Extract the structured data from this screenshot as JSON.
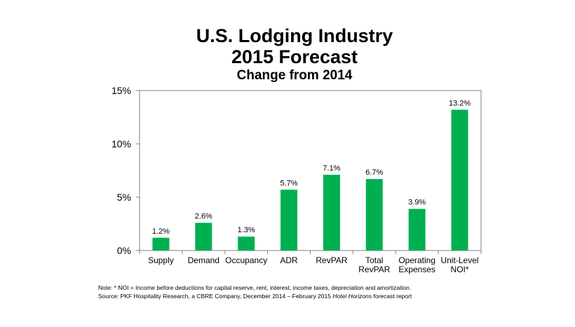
{
  "chart_data": {
    "type": "bar",
    "title_line1": "U.S. Lodging Industry",
    "title_line2": "2015 Forecast",
    "subtitle": "Change from 2014",
    "categories": [
      [
        "Supply"
      ],
      [
        "Demand"
      ],
      [
        "Occupancy"
      ],
      [
        "ADR"
      ],
      [
        "RevPAR"
      ],
      [
        "Total",
        "RevPAR"
      ],
      [
        "Operating",
        "Expenses"
      ],
      [
        "Unit-Level",
        "NOI*"
      ]
    ],
    "values": [
      1.2,
      2.6,
      1.3,
      5.7,
      7.1,
      6.7,
      3.9,
      13.2
    ],
    "data_labels": [
      "1.2%",
      "2.6%",
      "1.3%",
      "5.7%",
      "7.1%",
      "6.7%",
      "3.9%",
      "13.2%"
    ],
    "ylim": [
      0,
      15
    ],
    "yticks": [
      0,
      5,
      10,
      15
    ],
    "ytick_labels": [
      "0%",
      "5%",
      "10%",
      "15%"
    ],
    "xlabel": "",
    "ylabel": "",
    "grid": false,
    "bar_color": "#00b050"
  },
  "notes": {
    "note_line": "Note: * NOI = Income before deductions for capital reserve, rent, interest, income taxes, depreciation and amortization.",
    "source_prefix": "Source: PKF Hospitality Research, a CBRE Company, December 2014 – February 2015",
    "source_italic": "Hotel Horizons",
    "source_suffix": "forecast report"
  }
}
